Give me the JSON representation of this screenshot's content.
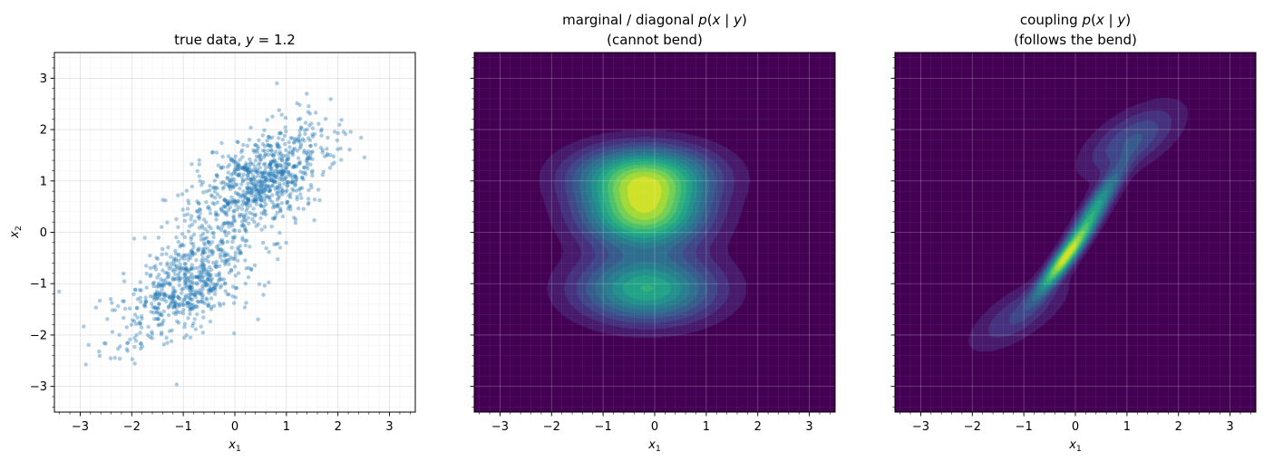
{
  "chart_data": [
    {
      "type": "scatter",
      "title": "true data, y = 1.2",
      "title_parts": [
        "true data, ",
        "y",
        " = 1.2"
      ],
      "xlabel": "x1",
      "ylabel": "x2",
      "xlim": [
        -3.5,
        3.5
      ],
      "ylim": [
        -3.5,
        3.5
      ],
      "xticks": [
        -3,
        -2,
        -1,
        0,
        1,
        2,
        3
      ],
      "yticks": [
        -3,
        -2,
        -1,
        0,
        1,
        2,
        3
      ],
      "xtick_labels": [
        "−3",
        "−2",
        "−1",
        "0",
        "1",
        "2",
        "3"
      ],
      "ytick_labels": [
        "−3",
        "−2",
        "−1",
        "0",
        "1",
        "2",
        "3"
      ],
      "grid": true,
      "point_color": "#1f77b4",
      "n_points": 1500,
      "distribution": {
        "component_a": {
          "mean": [
            -0.9,
            -1.0
          ],
          "std": [
            0.65,
            0.55
          ],
          "corr": 0.55,
          "weight": 0.45
        },
        "component_b": {
          "mean": [
            0.5,
            1.0
          ],
          "std": [
            0.65,
            0.55
          ],
          "corr": 0.55,
          "weight": 0.55
        }
      }
    },
    {
      "type": "heatmap",
      "title_line1_parts": [
        "marginal / diagonal ",
        "p",
        "(",
        "x",
        " | ",
        "y",
        ")"
      ],
      "title_line2": "(cannot bend)",
      "xlabel": "x1",
      "xlim": [
        -3.5,
        3.5
      ],
      "ylim": [
        -3.5,
        3.5
      ],
      "xticks": [
        -3,
        -2,
        -1,
        0,
        1,
        2,
        3
      ],
      "xtick_labels": [
        "−3",
        "−2",
        "−1",
        "0",
        "1",
        "2",
        "3"
      ],
      "grid": true,
      "colormap": "viridis",
      "density_components": [
        {
          "mean": [
            -0.2,
            1.1
          ],
          "std": [
            0.85,
            0.38
          ],
          "weight": 0.32
        },
        {
          "mean": [
            -0.2,
            0.35
          ],
          "std": [
            0.75,
            0.45
          ],
          "weight": 0.38
        },
        {
          "mean": [
            -0.15,
            -1.1
          ],
          "std": [
            0.85,
            0.42
          ],
          "weight": 0.3
        }
      ]
    },
    {
      "type": "heatmap",
      "title_line1_parts": [
        "coupling ",
        "p",
        "(",
        "x",
        " | ",
        "y",
        ")"
      ],
      "title_line2": "(follows the bend)",
      "xlabel": "x1",
      "xlim": [
        -3.5,
        3.5
      ],
      "ylim": [
        -3.5,
        3.5
      ],
      "xticks": [
        -3,
        -2,
        -1,
        0,
        1,
        2,
        3
      ],
      "xtick_labels": [
        "−3",
        "−2",
        "−1",
        "0",
        "1",
        "2",
        "3"
      ],
      "grid": true,
      "colormap": "viridis",
      "density_components": [
        {
          "mean": [
            -1.1,
            -1.6
          ],
          "std": [
            0.6,
            0.45
          ],
          "corr": 0.7,
          "weight": 0.18
        },
        {
          "mean": [
            -0.2,
            -0.5
          ],
          "std": [
            0.35,
            0.45
          ],
          "corr": 0.92,
          "weight": 0.32
        },
        {
          "mean": [
            0.4,
            0.5
          ],
          "std": [
            0.35,
            0.5
          ],
          "corr": 0.9,
          "weight": 0.22
        },
        {
          "mean": [
            1.1,
            1.8
          ],
          "std": [
            0.6,
            0.45
          ],
          "corr": 0.6,
          "weight": 0.28
        }
      ]
    }
  ]
}
